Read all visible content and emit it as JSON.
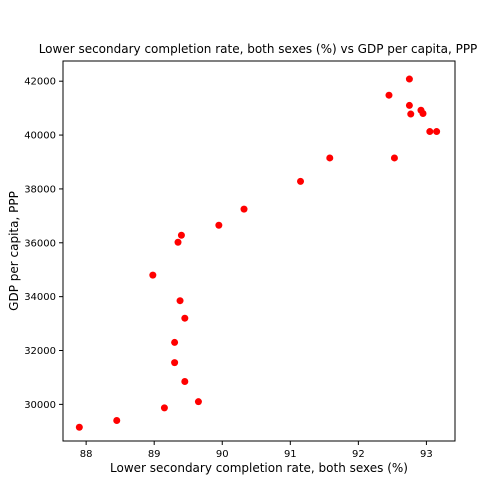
{
  "chart_data": {
    "type": "scatter",
    "title": "Lower secondary completion rate, both sexes (%) vs GDP per capita, PPP",
    "xlabel": "Lower secondary completion rate, both sexes (%)",
    "ylabel": "GDP per capita, PPP",
    "xlim": [
      87.66,
      93.42
    ],
    "ylim": [
      28640,
      42750
    ],
    "xticks": [
      88,
      89,
      90,
      91,
      92,
      93
    ],
    "yticks": [
      30000,
      32000,
      34000,
      36000,
      38000,
      40000,
      42000
    ],
    "grid": false,
    "marker_color": "#ff0000",
    "points": [
      {
        "x": 87.9,
        "y": 29150
      },
      {
        "x": 88.45,
        "y": 29400
      },
      {
        "x": 89.15,
        "y": 29870
      },
      {
        "x": 89.65,
        "y": 30100
      },
      {
        "x": 89.45,
        "y": 30850
      },
      {
        "x": 89.3,
        "y": 31550
      },
      {
        "x": 89.3,
        "y": 32300
      },
      {
        "x": 89.45,
        "y": 33200
      },
      {
        "x": 89.38,
        "y": 33850
      },
      {
        "x": 88.98,
        "y": 34800
      },
      {
        "x": 89.35,
        "y": 36020
      },
      {
        "x": 89.4,
        "y": 36280
      },
      {
        "x": 89.95,
        "y": 36650
      },
      {
        "x": 90.32,
        "y": 37250
      },
      {
        "x": 91.15,
        "y": 38280
      },
      {
        "x": 91.58,
        "y": 39150
      },
      {
        "x": 92.53,
        "y": 39150
      },
      {
        "x": 92.45,
        "y": 41480
      },
      {
        "x": 92.75,
        "y": 42080
      },
      {
        "x": 92.75,
        "y": 41100
      },
      {
        "x": 92.77,
        "y": 40780
      },
      {
        "x": 92.92,
        "y": 40920
      },
      {
        "x": 92.95,
        "y": 40800
      },
      {
        "x": 93.05,
        "y": 40130
      },
      {
        "x": 93.15,
        "y": 40130
      }
    ]
  }
}
